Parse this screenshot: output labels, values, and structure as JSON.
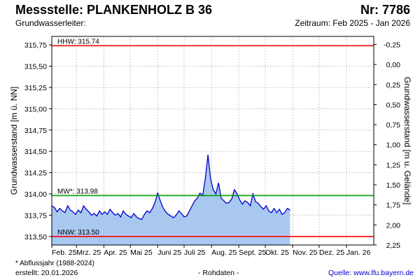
{
  "header": {
    "title": "Messstelle: PLANKENHOLZ B 36",
    "number": "Nr: 7786",
    "aquifer": "Grundwasserleiter:",
    "period": "Zeitraum: Feb 2025 - Jan 2026"
  },
  "footer": {
    "footnote": "* Abflussjahr (1988-2024)",
    "created": "erstellt:  20.01.2026",
    "raw": "- Rohdaten -",
    "source": "Quelle:  www.lfu.bayern.de"
  },
  "colors": {
    "hhw_line": "#ff0000",
    "nnw_line": "#ff0000",
    "mw_line": "#00a000",
    "series_line": "#0000cc",
    "series_fill": "#a8c8f0",
    "grid": "#c8c8c8"
  },
  "chart_data": {
    "type": "area",
    "xlabel": "",
    "ylabel": "Grundwasserstand [m ü. NN]",
    "ylabel_right": "Grundwasserstand [m u. Gelände]",
    "ylim": [
      313.4,
      315.85
    ],
    "ylim_right": [
      -0.35,
      2.25
    ],
    "y_ticks": [
      "315,75",
      "315,50",
      "315,25",
      "315,00",
      "314,75",
      "314,50",
      "314,25",
      "314,00",
      "313,75",
      "313,50"
    ],
    "y_tick_values": [
      315.75,
      315.5,
      315.25,
      315.0,
      314.75,
      314.5,
      314.25,
      314.0,
      313.75,
      313.5
    ],
    "y_ticks_right": [
      "-0,25",
      "0,00",
      "0,25",
      "0,50",
      "0,75",
      "1,00",
      "1,25",
      "1,50",
      "1,75",
      "2,00",
      "2,25"
    ],
    "y_tick_values_right": [
      -0.25,
      0.0,
      0.25,
      0.5,
      0.75,
      1.0,
      1.25,
      1.5,
      1.75,
      2.0,
      2.25
    ],
    "x_ticks": [
      "Feb. 25",
      "Mrz. 25",
      "Apr. 25",
      "Mai 25",
      "Juni 25",
      "Juli 25",
      "Aug. 25",
      "Sept. 25",
      "Okt. 25",
      "Nov. 25",
      "Dez. 25",
      "Jan. 26"
    ],
    "grid": true,
    "reference_lines": [
      {
        "label": "HHW: 315.74",
        "value": 315.74
      },
      {
        "label": "MW*: 313.98",
        "value": 313.98
      },
      {
        "label": "NNW: 313.50",
        "value": 313.5
      }
    ],
    "series": [
      {
        "dates": [
          "2025-02-01",
          "2025-02-04",
          "2025-02-07",
          "2025-02-10",
          "2025-02-13",
          "2025-02-16",
          "2025-02-19",
          "2025-02-22",
          "2025-02-25",
          "2025-02-28",
          "2025-03-03",
          "2025-03-06",
          "2025-03-09",
          "2025-03-12",
          "2025-03-15",
          "2025-03-18",
          "2025-03-21",
          "2025-03-24",
          "2025-03-27",
          "2025-03-30",
          "2025-04-02",
          "2025-04-05",
          "2025-04-08",
          "2025-04-11",
          "2025-04-14",
          "2025-04-17",
          "2025-04-20",
          "2025-04-23",
          "2025-04-26",
          "2025-04-29",
          "2025-05-02",
          "2025-05-05",
          "2025-05-08",
          "2025-05-11",
          "2025-05-14",
          "2025-05-17",
          "2025-05-20",
          "2025-05-23",
          "2025-05-26",
          "2025-05-29",
          "2025-06-01",
          "2025-06-04",
          "2025-06-07",
          "2025-06-10",
          "2025-06-13",
          "2025-06-16",
          "2025-06-19",
          "2025-06-22",
          "2025-06-25",
          "2025-06-28",
          "2025-07-01",
          "2025-07-04",
          "2025-07-07",
          "2025-07-10",
          "2025-07-13",
          "2025-07-16",
          "2025-07-19",
          "2025-07-22",
          "2025-07-25",
          "2025-07-28",
          "2025-07-31",
          "2025-08-03",
          "2025-08-06",
          "2025-08-09",
          "2025-08-12",
          "2025-08-15",
          "2025-08-18",
          "2025-08-21",
          "2025-08-24",
          "2025-08-27",
          "2025-08-30",
          "2025-09-02",
          "2025-09-05",
          "2025-09-08",
          "2025-09-11",
          "2025-09-14",
          "2025-09-17",
          "2025-09-20",
          "2025-09-23",
          "2025-09-26",
          "2025-09-29",
          "2025-10-02",
          "2025-10-05",
          "2025-10-08",
          "2025-10-11",
          "2025-10-14",
          "2025-10-17",
          "2025-10-20",
          "2025-10-23",
          "2025-10-26",
          "2025-10-29"
        ],
        "values": [
          313.86,
          313.84,
          313.79,
          313.83,
          313.8,
          313.78,
          313.86,
          313.81,
          313.79,
          313.76,
          313.81,
          313.78,
          313.86,
          313.82,
          313.79,
          313.75,
          313.77,
          313.74,
          313.8,
          313.76,
          313.79,
          313.76,
          313.82,
          313.78,
          313.75,
          313.77,
          313.73,
          313.8,
          313.76,
          313.74,
          313.72,
          313.77,
          313.73,
          313.71,
          313.7,
          313.76,
          313.8,
          313.78,
          313.83,
          313.9,
          314.01,
          313.92,
          313.84,
          313.79,
          313.76,
          313.74,
          313.72,
          313.75,
          313.8,
          313.77,
          313.73,
          313.74,
          313.8,
          313.86,
          313.92,
          313.95,
          314.01,
          313.98,
          314.18,
          314.46,
          314.18,
          314.05,
          314.0,
          314.13,
          313.95,
          313.92,
          313.89,
          313.9,
          313.94,
          314.05,
          314.0,
          313.93,
          313.88,
          313.92,
          313.9,
          313.86,
          314.0,
          313.91,
          313.89,
          313.85,
          313.82,
          313.86,
          313.8,
          313.78,
          313.83,
          313.78,
          313.82,
          313.76,
          313.78,
          313.83,
          313.81
        ]
      }
    ]
  }
}
